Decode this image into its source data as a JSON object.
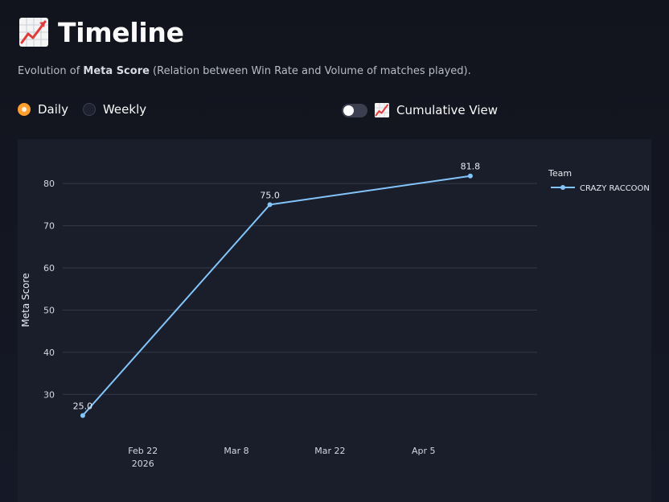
{
  "header": {
    "title": "Timeline",
    "title_icon": "chart-increasing-icon",
    "subtitle_prefix": "Evolution of ",
    "subtitle_bold": "Meta Score",
    "subtitle_suffix": " (Relation between Win Rate and Volume of matches played)."
  },
  "period": {
    "options": [
      "Daily",
      "Weekly"
    ],
    "selected": "Daily"
  },
  "cumulative": {
    "label": "Cumulative View",
    "icon": "chart-increasing-icon",
    "enabled": false
  },
  "colors": {
    "accent": "#ff9f2e",
    "series_line": "#83c5fb",
    "panel_bg": "#1a1e2b"
  },
  "chart_data": {
    "type": "line",
    "xlabel": "",
    "ylabel": "Meta Score",
    "x_ticks": [
      "Feb 22",
      "Mar 8",
      "Mar 22",
      "Apr 5"
    ],
    "x_tick_year": "2026",
    "y_ticks": [
      30,
      40,
      50,
      60,
      70,
      80
    ],
    "ylim": [
      20.7,
      84.8
    ],
    "xlim": [
      "2026-02-10",
      "2026-04-22"
    ],
    "grid": true,
    "legend_title": "Team",
    "legend_position": "top-right",
    "series": [
      {
        "name": "CRAZY RACCOON",
        "color": "#83c5fb",
        "points": [
          {
            "x": "2026-02-13",
            "y": 25.0,
            "label": "25.0"
          },
          {
            "x": "2026-03-13",
            "y": 75.0,
            "label": "75.0"
          },
          {
            "x": "2026-04-12",
            "y": 81.8,
            "label": "81.8"
          }
        ]
      }
    ]
  }
}
